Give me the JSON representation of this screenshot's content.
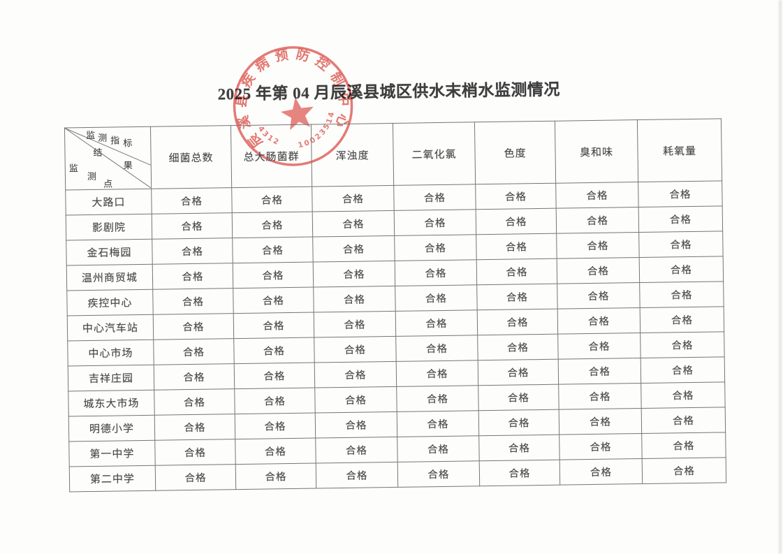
{
  "page": {
    "title": "2025 年第 04 月辰溪县城区供水末梢水监测情况"
  },
  "seal": {
    "org": "辰溪县疾病预防控制中心",
    "code_left": "4312",
    "code_right": "10023514",
    "color": "#dc564f"
  },
  "table": {
    "corner": {
      "top": "监测指标",
      "middle": "结果",
      "bottom": "监测点"
    },
    "columns": [
      "细菌总数",
      "总大肠菌群",
      "浑浊度",
      "二氧化氯",
      "色度",
      "臭和味",
      "耗氧量"
    ],
    "pass_label": "合格",
    "rows": [
      {
        "site": "大路口",
        "values": [
          "合格",
          "合格",
          "合格",
          "合格",
          "合格",
          "合格",
          "合格"
        ]
      },
      {
        "site": "影剧院",
        "values": [
          "合格",
          "合格",
          "合格",
          "合格",
          "合格",
          "合格",
          "合格"
        ]
      },
      {
        "site": "金石梅园",
        "values": [
          "合格",
          "合格",
          "合格",
          "合格",
          "合格",
          "合格",
          "合格"
        ]
      },
      {
        "site": "温州商贸城",
        "values": [
          "合格",
          "合格",
          "合格",
          "合格",
          "合格",
          "合格",
          "合格"
        ]
      },
      {
        "site": "疾控中心",
        "values": [
          "合格",
          "合格",
          "合格",
          "合格",
          "合格",
          "合格",
          "合格"
        ]
      },
      {
        "site": "中心汽车站",
        "values": [
          "合格",
          "合格",
          "合格",
          "合格",
          "合格",
          "合格",
          "合格"
        ]
      },
      {
        "site": "中心市场",
        "values": [
          "合格",
          "合格",
          "合格",
          "合格",
          "合格",
          "合格",
          "合格"
        ]
      },
      {
        "site": "吉祥庄园",
        "values": [
          "合格",
          "合格",
          "合格",
          "合格",
          "合格",
          "合格",
          "合格"
        ]
      },
      {
        "site": "城东大市场",
        "values": [
          "合格",
          "合格",
          "合格",
          "合格",
          "合格",
          "合格",
          "合格"
        ]
      },
      {
        "site": "明德小学",
        "values": [
          "合格",
          "合格",
          "合格",
          "合格",
          "合格",
          "合格",
          "合格"
        ]
      },
      {
        "site": "第一中学",
        "values": [
          "合格",
          "合格",
          "合格",
          "合格",
          "合格",
          "合格",
          "合格"
        ]
      },
      {
        "site": "第二中学",
        "values": [
          "合格",
          "合格",
          "合格",
          "合格",
          "合格",
          "合格",
          "合格"
        ]
      }
    ]
  }
}
